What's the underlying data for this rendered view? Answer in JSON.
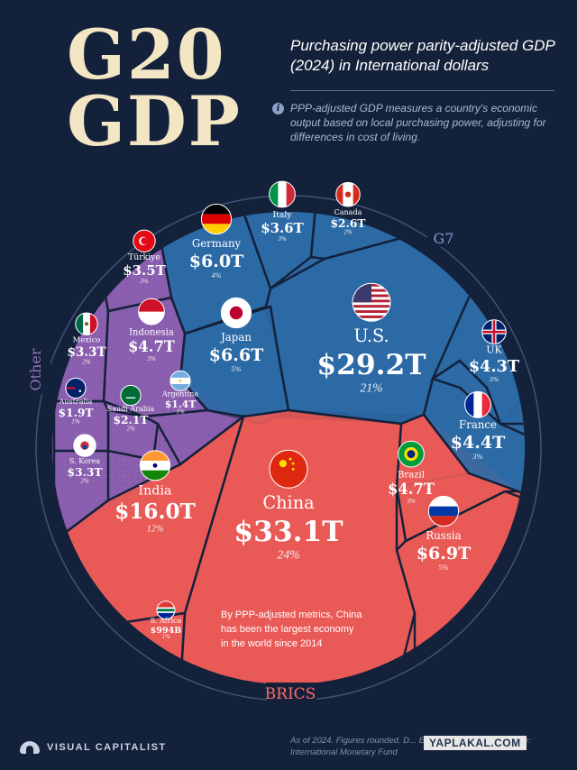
{
  "header": {
    "title_line1": "G20",
    "title_line2": "GDP",
    "subtitle": "Purchasing power parity-adjusted GDP (2024) in International dollars",
    "info_icon": "info-icon",
    "note": "PPP-adjusted GDP measures a country's economic output based on local purchasing power, adjusting for differences in cost of living."
  },
  "chart_data": {
    "type": "voronoi-treemap",
    "groups": [
      {
        "name": "G7",
        "color": "#2d6aa6"
      },
      {
        "name": "BRICS",
        "color": "#e85a57"
      },
      {
        "name": "Other",
        "color": "#8b5fb0"
      }
    ],
    "countries": [
      {
        "name": "U.S.",
        "value": "$29.2T",
        "share": "21%",
        "group": "G7",
        "flag": "us-flag"
      },
      {
        "name": "Japan",
        "value": "$6.6T",
        "share": "5%",
        "group": "G7",
        "flag": "japan-flag"
      },
      {
        "name": "Germany",
        "value": "$6.0T",
        "share": "4%",
        "group": "G7",
        "flag": "germany-flag"
      },
      {
        "name": "France",
        "value": "$4.4T",
        "share": "3%",
        "group": "G7",
        "flag": "france-flag"
      },
      {
        "name": "UK",
        "value": "$4.3T",
        "share": "3%",
        "group": "G7",
        "flag": "uk-flag"
      },
      {
        "name": "Italy",
        "value": "$3.6T",
        "share": "3%",
        "group": "G7",
        "flag": "italy-flag"
      },
      {
        "name": "Canada",
        "value": "$2.6T",
        "share": "2%",
        "group": "G7",
        "flag": "canada-flag"
      },
      {
        "name": "China",
        "value": "$33.1T",
        "share": "24%",
        "group": "BRICS",
        "flag": "china-flag"
      },
      {
        "name": "India",
        "value": "$16.0T",
        "share": "12%",
        "group": "BRICS",
        "flag": "india-flag"
      },
      {
        "name": "Russia",
        "value": "$6.9T",
        "share": "5%",
        "group": "BRICS",
        "flag": "russia-flag"
      },
      {
        "name": "Brazil",
        "value": "$4.7T",
        "share": "3%",
        "group": "BRICS",
        "flag": "brazil-flag"
      },
      {
        "name": "S. Africa",
        "value": "$994B",
        "share": "1%",
        "group": "BRICS",
        "flag": "south-africa-flag"
      },
      {
        "name": "Indonesia",
        "value": "$4.7T",
        "share": "3%",
        "group": "Other",
        "flag": "indonesia-flag"
      },
      {
        "name": "Türkiye",
        "value": "$3.5T",
        "share": "3%",
        "group": "Other",
        "flag": "turkiye-flag"
      },
      {
        "name": "Mexico",
        "value": "$3.3T",
        "share": "2%",
        "group": "Other",
        "flag": "mexico-flag"
      },
      {
        "name": "S. Korea",
        "value": "$3.3T",
        "share": "2%",
        "group": "Other",
        "flag": "south-korea-flag"
      },
      {
        "name": "Saudi Arabia",
        "value": "$2.1T",
        "share": "2%",
        "group": "Other",
        "flag": "saudi-arabia-flag"
      },
      {
        "name": "Australia",
        "value": "$1.9T",
        "share": "1%",
        "group": "Other",
        "flag": "australia-flag"
      },
      {
        "name": "Argentina",
        "value": "$1.4T",
        "share": "1%",
        "group": "Other",
        "flag": "argentina-flag"
      }
    ],
    "annotation": "By PPP-adjusted metrics, China has been the largest economy in the world since 2014"
  },
  "footer": {
    "source_note": "As of 2024. Figures rounded. D... EU, or African Union. Source: International Monetary Fund",
    "logo_text": "VISUAL CAPITALIST",
    "watermark": "YAPLAKAL.COM"
  }
}
